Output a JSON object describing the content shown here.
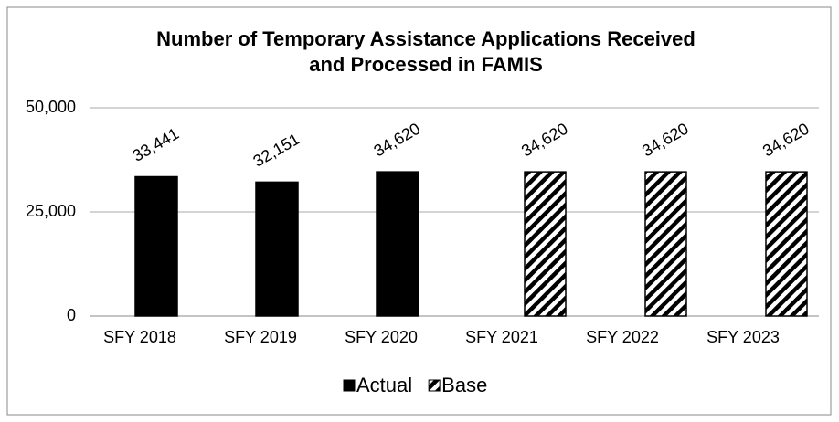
{
  "chart_data": {
    "type": "bar",
    "title": [
      "Number of Temporary Assistance Applications Received",
      "and Processed in FAMIS"
    ],
    "categories": [
      "SFY 2018",
      "SFY 2019",
      "SFY 2020",
      "SFY 2021",
      "SFY 2022",
      "SFY 2023"
    ],
    "series": [
      {
        "name": "Actual",
        "color": "#000000",
        "pattern": "solid",
        "values": [
          33441,
          32151,
          34620,
          null,
          null,
          null
        ],
        "value_labels": [
          "33,441",
          "32,151",
          "34,620",
          null,
          null,
          null
        ]
      },
      {
        "name": "Base",
        "color": "#000000",
        "pattern": "hatch",
        "values": [
          null,
          null,
          null,
          34620,
          34620,
          34620
        ],
        "value_labels": [
          null,
          null,
          null,
          "34,620",
          "34,620",
          "34,620"
        ]
      }
    ],
    "ylim": [
      0,
      50000
    ],
    "yticks": [
      0,
      {
        "value": 25000,
        "label": "25,000"
      },
      {
        "value": 50000,
        "label": "50,000"
      }
    ],
    "grid": true,
    "legend": "bottom"
  }
}
